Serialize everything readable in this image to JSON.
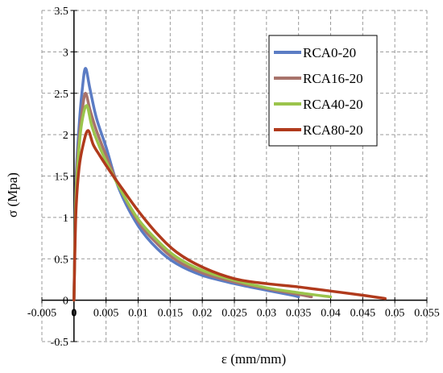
{
  "chart_data": {
    "type": "line",
    "title": "",
    "xlabel": "ε (mm/mm)",
    "ylabel": "σ (Mpa)",
    "xlim": [
      -0.005,
      0.055
    ],
    "ylim": [
      -0.5,
      3.5
    ],
    "x_ticks": [
      "-0.005",
      "0",
      "0.005",
      "0.01",
      "0.015",
      "0.02",
      "0.025",
      "0.03",
      "0.035",
      "0.04",
      "0.045",
      "0.05",
      "0.055"
    ],
    "y_ticks": [
      "-0.5",
      "0",
      "0.5",
      "1",
      "1.5",
      "2",
      "2.5",
      "3",
      "3.5"
    ],
    "grid": true,
    "legend_position": "top-right",
    "series": [
      {
        "name": "RCA0-20",
        "color": "#5b7cc4",
        "points": [
          [
            0,
            0
          ],
          [
            0.0003,
            1.4
          ],
          [
            0.0008,
            2.1
          ],
          [
            0.0013,
            2.55
          ],
          [
            0.0018,
            2.8
          ],
          [
            0.0025,
            2.55
          ],
          [
            0.0035,
            2.2
          ],
          [
            0.005,
            1.85
          ],
          [
            0.007,
            1.35
          ],
          [
            0.01,
            0.9
          ],
          [
            0.013,
            0.62
          ],
          [
            0.016,
            0.44
          ],
          [
            0.02,
            0.3
          ],
          [
            0.025,
            0.2
          ],
          [
            0.03,
            0.12
          ],
          [
            0.034,
            0.06
          ],
          [
            0.035,
            0.04
          ]
        ]
      },
      {
        "name": "RCA16-20",
        "color": "#a8736b",
        "points": [
          [
            0,
            0
          ],
          [
            0.0003,
            1.3
          ],
          [
            0.0008,
            1.95
          ],
          [
            0.0013,
            2.3
          ],
          [
            0.0018,
            2.5
          ],
          [
            0.0025,
            2.3
          ],
          [
            0.0035,
            2.05
          ],
          [
            0.005,
            1.75
          ],
          [
            0.007,
            1.38
          ],
          [
            0.01,
            0.95
          ],
          [
            0.013,
            0.68
          ],
          [
            0.016,
            0.48
          ],
          [
            0.02,
            0.33
          ],
          [
            0.025,
            0.22
          ],
          [
            0.03,
            0.14
          ],
          [
            0.035,
            0.07
          ],
          [
            0.037,
            0.04
          ]
        ]
      },
      {
        "name": "RCA40-20",
        "color": "#9bc44b",
        "points": [
          [
            0,
            0
          ],
          [
            0.0003,
            1.2
          ],
          [
            0.0008,
            1.85
          ],
          [
            0.0013,
            2.18
          ],
          [
            0.002,
            2.35
          ],
          [
            0.0028,
            2.1
          ],
          [
            0.004,
            1.85
          ],
          [
            0.0055,
            1.6
          ],
          [
            0.0075,
            1.3
          ],
          [
            0.01,
            0.98
          ],
          [
            0.013,
            0.72
          ],
          [
            0.016,
            0.52
          ],
          [
            0.02,
            0.36
          ],
          [
            0.025,
            0.24
          ],
          [
            0.03,
            0.15
          ],
          [
            0.035,
            0.09
          ],
          [
            0.04,
            0.04
          ]
        ]
      },
      {
        "name": "RCA80-20",
        "color": "#b03a1c",
        "points": [
          [
            0,
            0
          ],
          [
            0.0003,
            1.05
          ],
          [
            0.0008,
            1.6
          ],
          [
            0.0015,
            1.9
          ],
          [
            0.0022,
            2.05
          ],
          [
            0.003,
            1.88
          ],
          [
            0.004,
            1.75
          ],
          [
            0.0055,
            1.57
          ],
          [
            0.0075,
            1.35
          ],
          [
            0.01,
            1.08
          ],
          [
            0.013,
            0.8
          ],
          [
            0.016,
            0.58
          ],
          [
            0.02,
            0.4
          ],
          [
            0.025,
            0.26
          ],
          [
            0.03,
            0.2
          ],
          [
            0.035,
            0.16
          ],
          [
            0.04,
            0.11
          ],
          [
            0.045,
            0.06
          ],
          [
            0.0485,
            0.02
          ]
        ]
      }
    ]
  }
}
